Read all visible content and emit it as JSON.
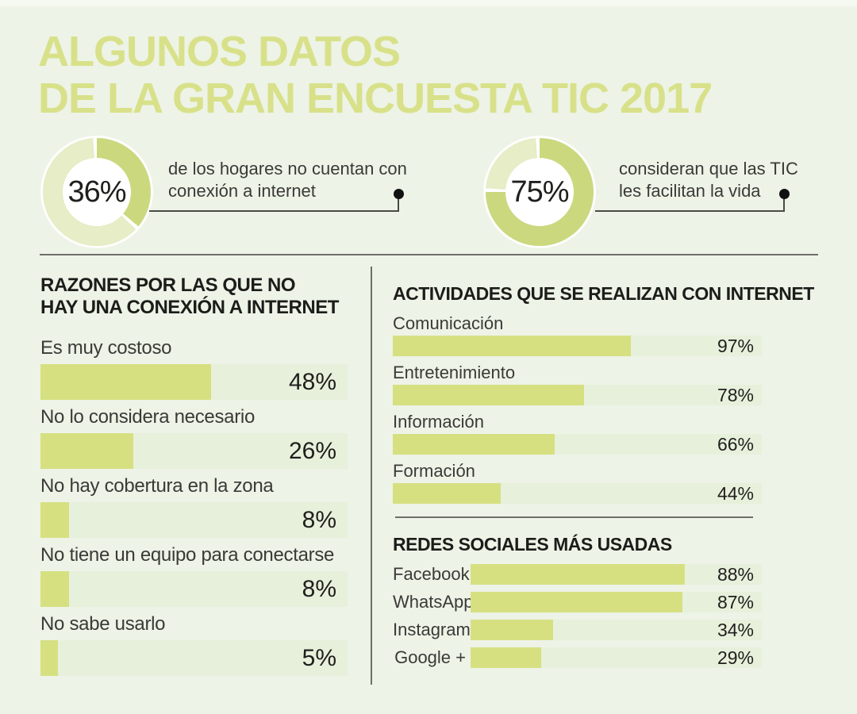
{
  "colors": {
    "background": "#edf3e6",
    "title": "#d8e189",
    "bar_fill": "#d6e081",
    "bar_track": "#e7f0db",
    "donut_main": "#cbd87e",
    "donut_rest": "#e6edc7",
    "donut_center": "#ffffff",
    "heading_text": "#1c1c1a",
    "label_text": "#3a3a38",
    "value_text": "#1f1f1d",
    "line": "#4a4b45",
    "dot": "#111111"
  },
  "title": {
    "line1": "ALGUNOS DATOS",
    "line2": "DE LA GRAN ENCUESTA TIC 2017"
  },
  "donuts": [
    {
      "pct": "36%",
      "value": 36,
      "caption_line1": "de los hogares no cuentan con",
      "caption_line2": "conexión a internet"
    },
    {
      "pct": "75%",
      "value": 75,
      "caption_line1": "consideran que las TIC",
      "caption_line2": "les facilitan la vida"
    }
  ],
  "sections": {
    "reasons": {
      "title_line1": "RAZONES POR LAS QUE NO",
      "title_line2": "HAY UNA CONEXIÓN A INTERNET",
      "bar_scale": 1.16,
      "items": [
        {
          "label": "Es muy costoso",
          "value": 48,
          "pct": "48%"
        },
        {
          "label": "No lo considera necesario",
          "value": 26,
          "pct": "26%"
        },
        {
          "label": "No hay cobertura en la zona",
          "value": 8,
          "pct": "8%"
        },
        {
          "label": "No tiene un equipo para conectarse",
          "value": 8,
          "pct": "8%"
        },
        {
          "label": "No sabe usarlo",
          "value": 5,
          "pct": "5%"
        }
      ]
    },
    "activities": {
      "title": "ACTIVIDADES QUE SE REALIZAN CON INTERNET",
      "bar_scale": 0.665,
      "items": [
        {
          "label": "Comunicación",
          "value": 97,
          "pct": "97%"
        },
        {
          "label": "Entretenimiento",
          "value": 78,
          "pct": "78%"
        },
        {
          "label": "Información",
          "value": 66,
          "pct": "66%"
        },
        {
          "label": "Formación",
          "value": 44,
          "pct": "44%"
        }
      ]
    },
    "social": {
      "title": "REDES SOCIALES MÁS USADAS",
      "bar_scale": 0.835,
      "items": [
        {
          "label": "Facebook",
          "value": 88,
          "pct": "88%"
        },
        {
          "label": "WhatsApp",
          "value": 87,
          "pct": "87%"
        },
        {
          "label": "Instagram",
          "value": 34,
          "pct": "34%"
        },
        {
          "label": "Google +",
          "value": 29,
          "pct": "29%"
        }
      ]
    }
  },
  "chart_data": [
    {
      "type": "pie",
      "donut": true,
      "title": "36% de los hogares no cuentan con conexión a internet",
      "labels": [
        "No cuentan con conexión a internet",
        "Resto"
      ],
      "values": [
        36,
        64
      ],
      "colors": [
        "#cbd87e",
        "#e6edc7"
      ],
      "center_label": "36%"
    },
    {
      "type": "pie",
      "donut": true,
      "title": "75% consideran que las TIC les facilitan la vida",
      "labels": [
        "Consideran que las TIC les facilitan la vida",
        "Resto"
      ],
      "values": [
        75,
        25
      ],
      "colors": [
        "#cbd87e",
        "#e6edc7"
      ],
      "center_label": "75%"
    },
    {
      "type": "bar",
      "orientation": "horizontal",
      "title": "RAZONES POR LAS QUE NO HAY UNA CONEXIÓN A INTERNET",
      "categories": [
        "Es muy costoso",
        "No lo considera necesario",
        "No hay cobertura en la zona",
        "No tiene un equipo para conectarse",
        "No sabe usarlo"
      ],
      "values": [
        48,
        26,
        8,
        8,
        5
      ],
      "unit": "%",
      "xlim": [
        0,
        100
      ],
      "grid": false,
      "legend": false
    },
    {
      "type": "bar",
      "orientation": "horizontal",
      "title": "ACTIVIDADES QUE SE REALIZAN CON INTERNET",
      "categories": [
        "Comunicación",
        "Entretenimiento",
        "Información",
        "Formación"
      ],
      "values": [
        97,
        78,
        66,
        44
      ],
      "unit": "%",
      "xlim": [
        0,
        100
      ],
      "grid": false,
      "legend": false
    },
    {
      "type": "bar",
      "orientation": "horizontal",
      "title": "REDES SOCIALES MÁS USADAS",
      "categories": [
        "Facebook",
        "WhatsApp",
        "Instagram",
        "Google +"
      ],
      "values": [
        88,
        87,
        34,
        29
      ],
      "unit": "%",
      "xlim": [
        0,
        100
      ],
      "grid": false,
      "legend": false
    }
  ]
}
